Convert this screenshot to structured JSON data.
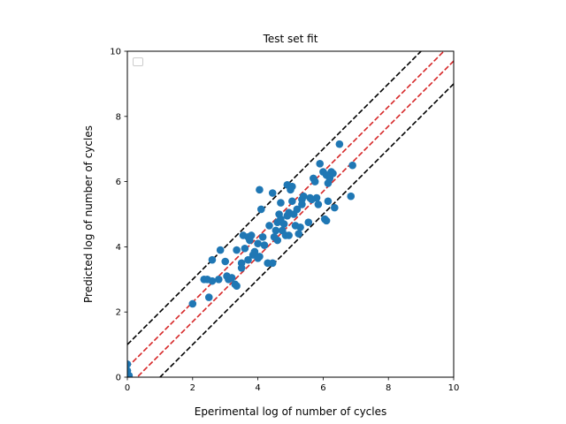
{
  "chart_data": {
    "type": "scatter",
    "title": "Test set fit",
    "xlabel": "Eperimental log of number of cycles",
    "ylabel": "Predicted log of number of cycles",
    "xlim": [
      0,
      10
    ],
    "ylim": [
      0,
      10
    ],
    "xticks": [
      0,
      2,
      4,
      6,
      8,
      10
    ],
    "yticks": [
      0,
      2,
      4,
      6,
      8,
      10
    ],
    "grid": false,
    "legend": "top-left (empty)",
    "point_color": "#1f77b4",
    "reference_lines": [
      {
        "offset": 0.3,
        "color": "#d62728",
        "style": "dashed"
      },
      {
        "offset": -0.3,
        "color": "#d62728",
        "style": "dashed"
      },
      {
        "offset": 1.0,
        "color": "#000000",
        "style": "dashed"
      },
      {
        "offset": -1.0,
        "color": "#000000",
        "style": "dashed"
      }
    ],
    "points": [
      [
        0.0,
        0.4
      ],
      [
        0.0,
        0.2
      ],
      [
        0.05,
        0.05
      ],
      [
        2.0,
        2.25
      ],
      [
        2.35,
        3.0
      ],
      [
        2.45,
        3.0
      ],
      [
        2.5,
        2.45
      ],
      [
        2.6,
        3.6
      ],
      [
        2.6,
        2.95
      ],
      [
        2.8,
        3.0
      ],
      [
        2.85,
        3.9
      ],
      [
        3.0,
        3.55
      ],
      [
        3.05,
        3.1
      ],
      [
        3.1,
        3.0
      ],
      [
        3.2,
        3.05
      ],
      [
        3.3,
        2.85
      ],
      [
        3.35,
        3.9
      ],
      [
        3.35,
        2.8
      ],
      [
        3.5,
        3.5
      ],
      [
        3.5,
        3.35
      ],
      [
        3.55,
        4.35
      ],
      [
        3.6,
        3.95
      ],
      [
        3.7,
        4.3
      ],
      [
        3.7,
        3.6
      ],
      [
        3.75,
        4.2
      ],
      [
        3.8,
        4.35
      ],
      [
        3.85,
        3.75
      ],
      [
        3.9,
        3.85
      ],
      [
        4.0,
        3.65
      ],
      [
        4.0,
        4.1
      ],
      [
        4.05,
        5.75
      ],
      [
        4.05,
        3.7
      ],
      [
        4.1,
        5.15
      ],
      [
        4.15,
        4.3
      ],
      [
        4.2,
        4.05
      ],
      [
        4.3,
        3.5
      ],
      [
        4.35,
        4.65
      ],
      [
        4.45,
        3.5
      ],
      [
        4.45,
        5.65
      ],
      [
        4.5,
        4.3
      ],
      [
        4.55,
        4.5
      ],
      [
        4.6,
        4.2
      ],
      [
        4.6,
        4.75
      ],
      [
        4.65,
        5.0
      ],
      [
        4.7,
        4.85
      ],
      [
        4.7,
        5.35
      ],
      [
        4.75,
        4.5
      ],
      [
        4.8,
        4.7
      ],
      [
        4.85,
        4.35
      ],
      [
        4.9,
        4.95
      ],
      [
        4.9,
        5.9
      ],
      [
        4.95,
        5.05
      ],
      [
        4.95,
        4.35
      ],
      [
        5.0,
        5.75
      ],
      [
        5.05,
        5.4
      ],
      [
        5.05,
        5.85
      ],
      [
        5.1,
        5.0
      ],
      [
        5.15,
        4.65
      ],
      [
        5.2,
        5.15
      ],
      [
        5.25,
        4.4
      ],
      [
        5.3,
        4.6
      ],
      [
        5.35,
        5.45
      ],
      [
        5.35,
        5.3
      ],
      [
        5.4,
        5.55
      ],
      [
        5.55,
        4.75
      ],
      [
        5.6,
        5.5
      ],
      [
        5.65,
        5.45
      ],
      [
        5.7,
        6.1
      ],
      [
        5.75,
        6.0
      ],
      [
        5.8,
        5.5
      ],
      [
        5.85,
        5.3
      ],
      [
        5.9,
        6.55
      ],
      [
        6.0,
        6.3
      ],
      [
        6.05,
        4.85
      ],
      [
        6.1,
        6.2
      ],
      [
        6.1,
        4.8
      ],
      [
        6.15,
        5.95
      ],
      [
        6.15,
        5.4
      ],
      [
        6.2,
        6.1
      ],
      [
        6.25,
        6.3
      ],
      [
        6.3,
        6.25
      ],
      [
        6.35,
        5.2
      ],
      [
        6.5,
        7.15
      ],
      [
        6.85,
        5.55
      ],
      [
        6.9,
        6.5
      ]
    ]
  }
}
